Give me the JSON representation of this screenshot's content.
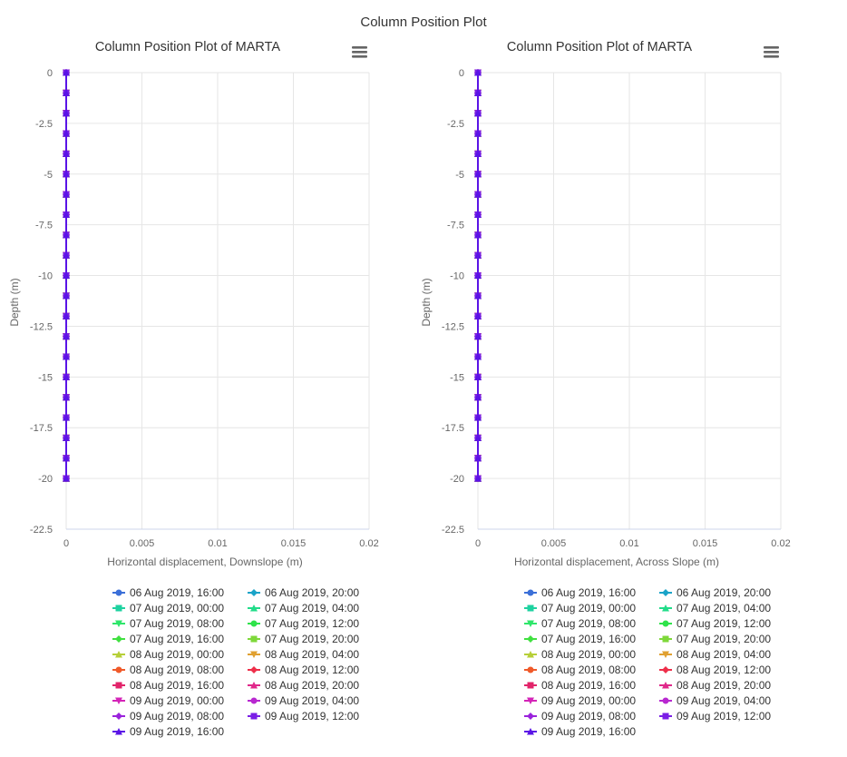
{
  "page_title": "Column Position Plot",
  "menu_icon": "hamburger-menu-icon",
  "chart_data": [
    {
      "type": "line",
      "title": "Column Position Plot of MARTA",
      "xlabel": "Horizontal displacement, Downslope (m)",
      "ylabel": "Depth (m)",
      "xlim": [
        0,
        0.02
      ],
      "ylim": [
        -22.5,
        0
      ],
      "xticks": [
        "0",
        "0.005",
        "0.01",
        "0.015",
        "0.02"
      ],
      "yticks": [
        "0",
        "-2.5",
        "-5",
        "-7.5",
        "-10",
        "-12.5",
        "-15",
        "-17.5",
        "-20",
        "-22.5"
      ],
      "grid": true,
      "legend_position": "bottom",
      "depths": [
        0,
        -1,
        -2,
        -3,
        -4,
        -5,
        -6,
        -7,
        -8,
        -9,
        -10,
        -11,
        -12,
        -13,
        -14,
        -15,
        -16,
        -17,
        -18,
        -19,
        -20
      ],
      "displacement": [
        0,
        0,
        0,
        0,
        0,
        0,
        0,
        0,
        0,
        0,
        0,
        0,
        0,
        0,
        0,
        0,
        0,
        0,
        0,
        0,
        0
      ],
      "series": [
        {
          "name": "06 Aug 2019, 16:00",
          "color": "#3b6fd8",
          "marker": "circle"
        },
        {
          "name": "06 Aug 2019, 20:00",
          "color": "#1aa3c8",
          "marker": "diamond"
        },
        {
          "name": "07 Aug 2019, 00:00",
          "color": "#1ed2a0",
          "marker": "square"
        },
        {
          "name": "07 Aug 2019, 04:00",
          "color": "#22dc8a",
          "marker": "triangle"
        },
        {
          "name": "07 Aug 2019, 08:00",
          "color": "#2ee66a",
          "marker": "triangle-down"
        },
        {
          "name": "07 Aug 2019, 12:00",
          "color": "#2fe34a",
          "marker": "circle"
        },
        {
          "name": "07 Aug 2019, 16:00",
          "color": "#40e040",
          "marker": "diamond"
        },
        {
          "name": "07 Aug 2019, 20:00",
          "color": "#7ed83a",
          "marker": "square"
        },
        {
          "name": "08 Aug 2019, 00:00",
          "color": "#b6cf38",
          "marker": "triangle"
        },
        {
          "name": "08 Aug 2019, 04:00",
          "color": "#e0a030",
          "marker": "triangle-down"
        },
        {
          "name": "08 Aug 2019, 08:00",
          "color": "#f05a2a",
          "marker": "circle"
        },
        {
          "name": "08 Aug 2019, 12:00",
          "color": "#ee2f4a",
          "marker": "diamond"
        },
        {
          "name": "08 Aug 2019, 16:00",
          "color": "#e2246a",
          "marker": "square"
        },
        {
          "name": "08 Aug 2019, 20:00",
          "color": "#e0288a",
          "marker": "triangle"
        },
        {
          "name": "09 Aug 2019, 00:00",
          "color": "#d424b8",
          "marker": "triangle-down"
        },
        {
          "name": "09 Aug 2019, 04:00",
          "color": "#b828d0",
          "marker": "circle"
        },
        {
          "name": "09 Aug 2019, 08:00",
          "color": "#9a22dc",
          "marker": "diamond"
        },
        {
          "name": "09 Aug 2019, 12:00",
          "color": "#7a1ee6",
          "marker": "square"
        },
        {
          "name": "09 Aug 2019, 16:00",
          "color": "#5a14e6",
          "marker": "triangle"
        }
      ]
    },
    {
      "type": "line",
      "title": "Column Position Plot of MARTA",
      "xlabel": "Horizontal displacement, Across Slope (m)",
      "ylabel": "Depth (m)",
      "xlim": [
        0,
        0.02
      ],
      "ylim": [
        -22.5,
        0
      ],
      "xticks": [
        "0",
        "0.005",
        "0.01",
        "0.015",
        "0.02"
      ],
      "yticks": [
        "0",
        "-2.5",
        "-5",
        "-7.5",
        "-10",
        "-12.5",
        "-15",
        "-17.5",
        "-20",
        "-22.5"
      ],
      "grid": true,
      "legend_position": "bottom",
      "depths": [
        0,
        -1,
        -2,
        -3,
        -4,
        -5,
        -6,
        -7,
        -8,
        -9,
        -10,
        -11,
        -12,
        -13,
        -14,
        -15,
        -16,
        -17,
        -18,
        -19,
        -20
      ],
      "displacement": [
        0,
        0,
        0,
        0,
        0,
        0,
        0,
        0,
        0,
        0,
        0,
        0,
        0,
        0,
        0,
        0,
        0,
        0,
        0,
        0,
        0
      ],
      "series": [
        {
          "name": "06 Aug 2019, 16:00",
          "color": "#3b6fd8",
          "marker": "circle"
        },
        {
          "name": "06 Aug 2019, 20:00",
          "color": "#1aa3c8",
          "marker": "diamond"
        },
        {
          "name": "07 Aug 2019, 00:00",
          "color": "#1ed2a0",
          "marker": "square"
        },
        {
          "name": "07 Aug 2019, 04:00",
          "color": "#22dc8a",
          "marker": "triangle"
        },
        {
          "name": "07 Aug 2019, 08:00",
          "color": "#2ee66a",
          "marker": "triangle-down"
        },
        {
          "name": "07 Aug 2019, 12:00",
          "color": "#2fe34a",
          "marker": "circle"
        },
        {
          "name": "07 Aug 2019, 16:00",
          "color": "#40e040",
          "marker": "diamond"
        },
        {
          "name": "07 Aug 2019, 20:00",
          "color": "#7ed83a",
          "marker": "square"
        },
        {
          "name": "08 Aug 2019, 00:00",
          "color": "#b6cf38",
          "marker": "triangle"
        },
        {
          "name": "08 Aug 2019, 04:00",
          "color": "#e0a030",
          "marker": "triangle-down"
        },
        {
          "name": "08 Aug 2019, 08:00",
          "color": "#f05a2a",
          "marker": "circle"
        },
        {
          "name": "08 Aug 2019, 12:00",
          "color": "#ee2f4a",
          "marker": "diamond"
        },
        {
          "name": "08 Aug 2019, 16:00",
          "color": "#e2246a",
          "marker": "square"
        },
        {
          "name": "08 Aug 2019, 20:00",
          "color": "#e0288a",
          "marker": "triangle"
        },
        {
          "name": "09 Aug 2019, 00:00",
          "color": "#d424b8",
          "marker": "triangle-down"
        },
        {
          "name": "09 Aug 2019, 04:00",
          "color": "#b828d0",
          "marker": "circle"
        },
        {
          "name": "09 Aug 2019, 08:00",
          "color": "#9a22dc",
          "marker": "diamond"
        },
        {
          "name": "09 Aug 2019, 12:00",
          "color": "#7a1ee6",
          "marker": "square"
        },
        {
          "name": "09 Aug 2019, 16:00",
          "color": "#5a14e6",
          "marker": "triangle"
        }
      ]
    }
  ]
}
